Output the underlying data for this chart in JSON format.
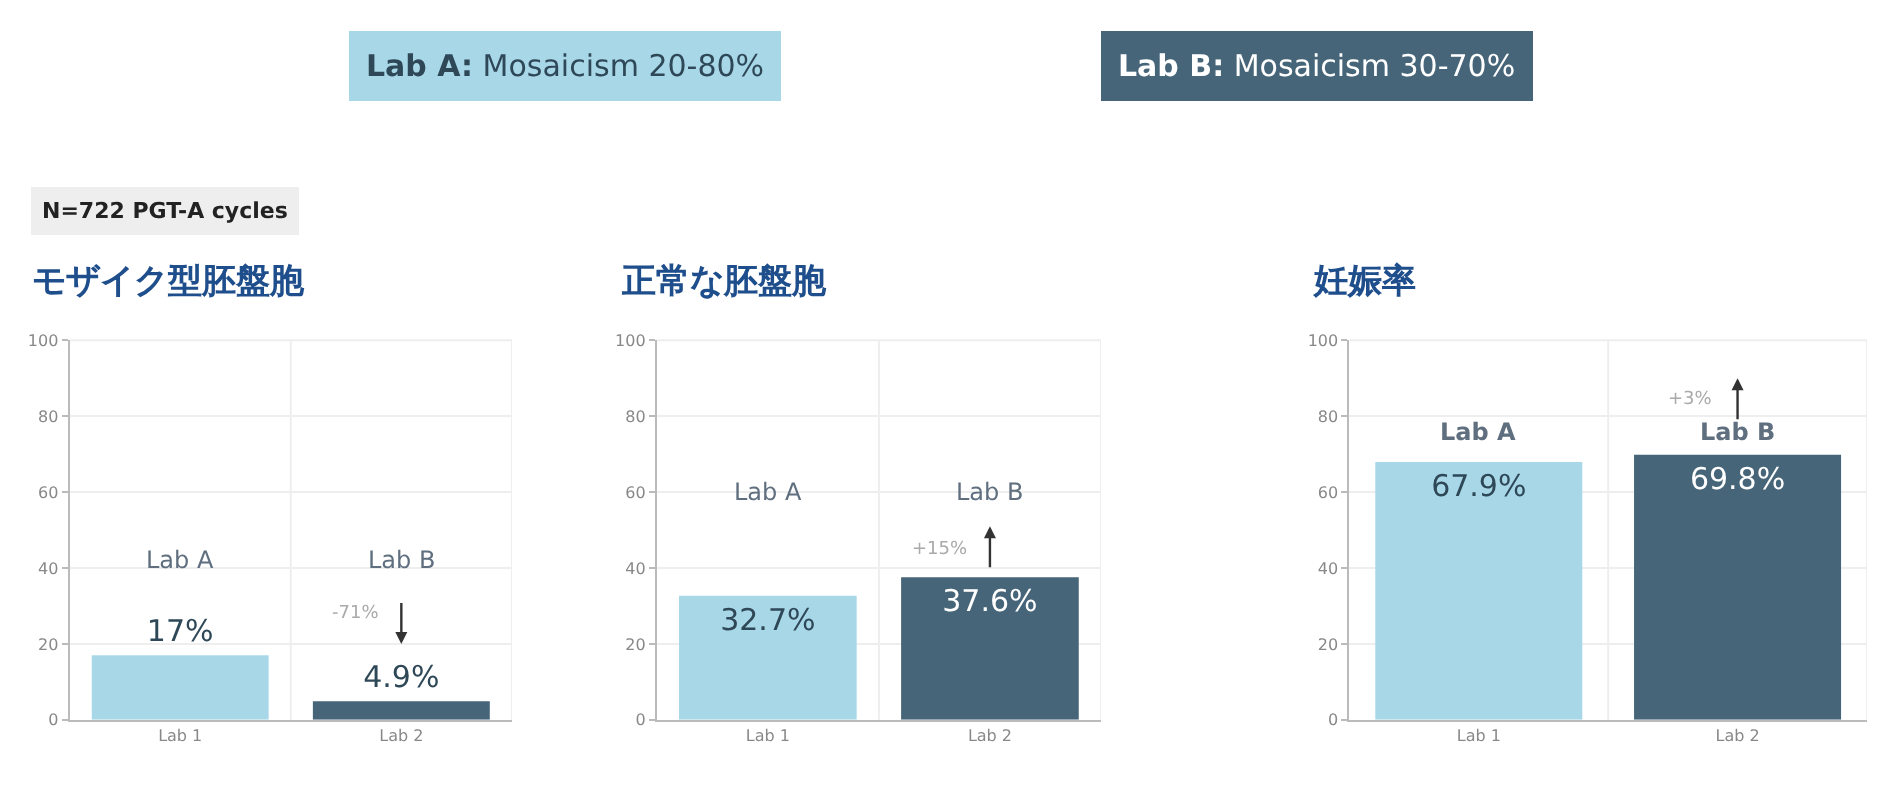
{
  "chart_data": [
    {
      "type": "bar",
      "title": "モザイク型胚盤胞",
      "categories": [
        "Lab 1",
        "Lab 2"
      ],
      "values": [
        17,
        4.9
      ],
      "colors": [
        "#a8d8e8",
        "#466579"
      ],
      "value_labels": [
        "17%",
        "4.9%"
      ],
      "ylim": [
        0,
        100
      ],
      "yticks": [
        0,
        20,
        40,
        60,
        80,
        100
      ],
      "grid": true,
      "annotations": [
        "Lab A: Mosaicism 20-80%",
        "Lab B: Mosaicism 30-70%",
        "N=722 PGT-A cycles",
        "Lab A",
        "Lab B",
        "-71%"
      ]
    },
    {
      "type": "bar",
      "title": "正常な胚盤胞",
      "categories": [
        "Lab 1",
        "Lab 2"
      ],
      "values": [
        32.7,
        37.6
      ],
      "colors": [
        "#a8d8e8",
        "#466579"
      ],
      "value_labels": [
        "32.7%",
        "37.6%"
      ],
      "ylim": [
        0,
        100
      ],
      "yticks": [
        0,
        20,
        40,
        60,
        80,
        100
      ],
      "grid": true,
      "annotations": [
        "Lab A",
        "Lab B",
        "+15%"
      ]
    },
    {
      "type": "bar",
      "title": "妊娠率",
      "categories": [
        "Lab 1",
        "Lab 2"
      ],
      "values": [
        67.9,
        69.8
      ],
      "colors": [
        "#a8d8e8",
        "#466579"
      ],
      "value_labels": [
        "67.9%",
        "69.8%"
      ],
      "ylim": [
        0,
        100
      ],
      "yticks": [
        0,
        20,
        40,
        60,
        80,
        100
      ],
      "grid": true,
      "annotations": [
        "Lab A",
        "Lab B",
        "+3%"
      ]
    }
  ]
}
